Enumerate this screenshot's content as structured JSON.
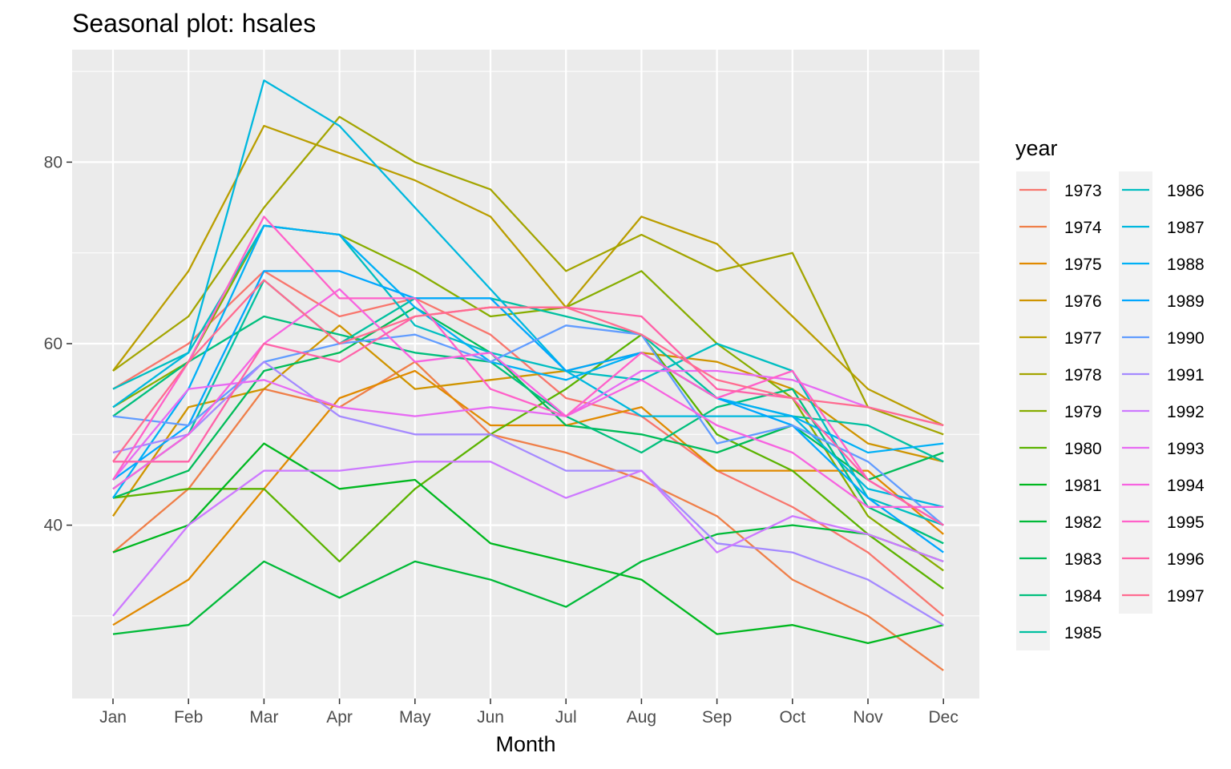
{
  "chart_data": {
    "type": "line",
    "title": "Seasonal plot: hsales",
    "xlabel": "Month",
    "ylabel": "",
    "categories": [
      "Jan",
      "Feb",
      "Mar",
      "Apr",
      "May",
      "Jun",
      "Jul",
      "Aug",
      "Sep",
      "Oct",
      "Nov",
      "Dec"
    ],
    "ylim": [
      24,
      90
    ],
    "yticks": [
      40,
      60,
      80
    ],
    "grid": true,
    "legend": {
      "title": "year",
      "placement": "right",
      "columns": 2
    },
    "series": [
      {
        "name": "1973",
        "color": "#F8766D",
        "values": [
          55,
          60,
          68,
          63,
          65,
          61,
          54,
          52,
          46,
          42,
          37,
          30
        ]
      },
      {
        "name": "1974",
        "color": "#EF7F49",
        "values": [
          37,
          44,
          55,
          53,
          58,
          50,
          48,
          45,
          41,
          34,
          30,
          24
        ]
      },
      {
        "name": "1975",
        "color": "#E18A00",
        "values": [
          29,
          34,
          44,
          54,
          57,
          51,
          51,
          53,
          46,
          46,
          46,
          39
        ]
      },
      {
        "name": "1976",
        "color": "#CF9400",
        "values": [
          41,
          53,
          55,
          62,
          55,
          56,
          57,
          59,
          58,
          55,
          49,
          47
        ]
      },
      {
        "name": "1977",
        "color": "#BA9E00",
        "values": [
          57,
          68,
          84,
          81,
          78,
          74,
          64,
          74,
          71,
          63,
          55,
          51
        ]
      },
      {
        "name": "1978",
        "color": "#A3A500",
        "values": [
          57,
          63,
          75,
          85,
          80,
          77,
          68,
          72,
          68,
          70,
          53,
          50
        ]
      },
      {
        "name": "1979",
        "color": "#87AD00",
        "values": [
          53,
          58,
          73,
          72,
          68,
          63,
          64,
          68,
          60,
          54,
          41,
          35
        ]
      },
      {
        "name": "1980",
        "color": "#5BB300",
        "values": [
          43,
          44,
          44,
          36,
          44,
          50,
          55,
          61,
          50,
          46,
          39,
          33
        ]
      },
      {
        "name": "1981",
        "color": "#00B81F",
        "values": [
          37,
          40,
          49,
          44,
          45,
          38,
          36,
          34,
          28,
          29,
          27,
          29
        ]
      },
      {
        "name": "1982",
        "color": "#00BA38",
        "values": [
          28,
          29,
          36,
          32,
          36,
          34,
          31,
          36,
          39,
          40,
          39,
          36
        ]
      },
      {
        "name": "1983",
        "color": "#00BC59",
        "values": [
          43,
          46,
          57,
          59,
          64,
          59,
          51,
          50,
          48,
          51,
          45,
          48
        ]
      },
      {
        "name": "1984",
        "color": "#00BF7D",
        "values": [
          52,
          58,
          63,
          61,
          59,
          58,
          52,
          48,
          53,
          55,
          42,
          38
        ]
      },
      {
        "name": "1985",
        "color": "#00C0A0",
        "values": [
          44,
          50,
          67,
          60,
          65,
          65,
          63,
          61,
          54,
          52,
          51,
          47
        ]
      },
      {
        "name": "1986",
        "color": "#00BEC1",
        "values": [
          55,
          59,
          73,
          72,
          62,
          59,
          57,
          56,
          60,
          57,
          43,
          40
        ]
      },
      {
        "name": "1987",
        "color": "#00B8DE",
        "values": [
          53,
          59,
          89,
          84,
          75,
          66,
          57,
          52,
          52,
          52,
          44,
          42
        ]
      },
      {
        "name": "1988",
        "color": "#00B0F6",
        "values": [
          43,
          55,
          73,
          72,
          64,
          58,
          56,
          59,
          54,
          52,
          48,
          49
        ]
      },
      {
        "name": "1989",
        "color": "#00A7FF",
        "values": [
          45,
          51,
          68,
          68,
          65,
          65,
          57,
          59,
          54,
          51,
          43,
          37
        ]
      },
      {
        "name": "1990",
        "color": "#619CFF",
        "values": [
          52,
          51,
          58,
          60,
          61,
          58,
          62,
          61,
          49,
          51,
          47,
          40
        ]
      },
      {
        "name": "1991",
        "color": "#A58AFF",
        "values": [
          48,
          50,
          58,
          52,
          50,
          50,
          46,
          46,
          38,
          37,
          34,
          29
        ]
      },
      {
        "name": "1992",
        "color": "#CD79FF",
        "values": [
          30,
          40,
          46,
          46,
          47,
          47,
          43,
          46,
          37,
          41,
          39,
          36
        ]
      },
      {
        "name": "1993",
        "color": "#E76BF3",
        "values": [
          45,
          55,
          56,
          53,
          52,
          53,
          52,
          57,
          57,
          56,
          53,
          51
        ]
      },
      {
        "name": "1994",
        "color": "#F763E0",
        "values": [
          44,
          50,
          60,
          66,
          58,
          59,
          52,
          56,
          51,
          48,
          42,
          42
        ]
      },
      {
        "name": "1995",
        "color": "#FF61C9",
        "values": [
          45,
          58,
          74,
          65,
          65,
          55,
          52,
          59,
          54,
          57,
          45,
          40
        ]
      },
      {
        "name": "1996",
        "color": "#FF62A8",
        "values": [
          47,
          47,
          60,
          58,
          63,
          64,
          64,
          63,
          55,
          54,
          45,
          40
        ]
      },
      {
        "name": "1997",
        "color": "#FF6C91",
        "values": [
          47,
          58,
          67,
          60,
          63,
          64,
          64,
          61,
          56,
          54,
          53,
          51
        ]
      }
    ]
  }
}
